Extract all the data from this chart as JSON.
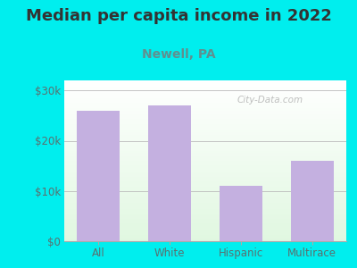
{
  "title": "Median per capita income in 2022",
  "subtitle": "Newell, PA",
  "categories": [
    "All",
    "White",
    "Hispanic",
    "Multirace"
  ],
  "values": [
    26000,
    27000,
    11000,
    16000
  ],
  "bar_color": "#c4b0e0",
  "background_color": "#00EEEE",
  "title_color": "#333333",
  "subtitle_color": "#5f9090",
  "tick_label_color": "#5a7070",
  "ylim": [
    0,
    32000
  ],
  "yticks": [
    0,
    10000,
    20000,
    30000
  ],
  "ytick_labels": [
    "$0",
    "$10k",
    "$20k",
    "$30k"
  ],
  "watermark": "City-Data.com",
  "title_fontsize": 13,
  "subtitle_fontsize": 10,
  "tick_fontsize": 8.5
}
